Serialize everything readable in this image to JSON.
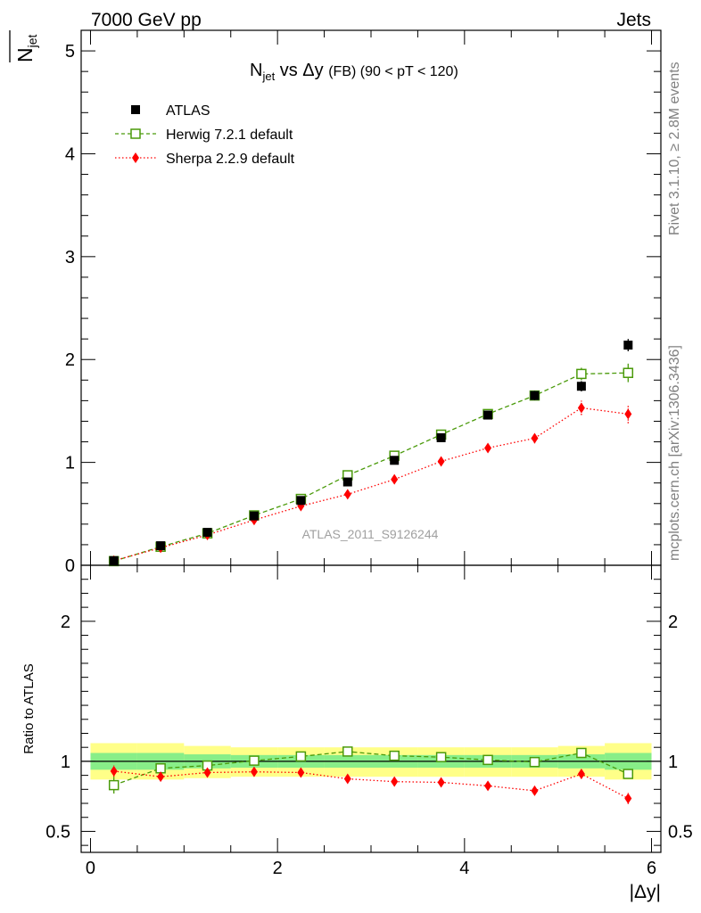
{
  "header": {
    "left": "7000 GeV pp",
    "right": "Jets"
  },
  "side_text": {
    "rivet": "Rivet 3.1.10, ≥ 2.8M events",
    "mcplots": "mcplots.cern.ch [arXiv:1306.3436]"
  },
  "chart_data": [
    {
      "type": "scatter",
      "title_main": "N",
      "title_sub": "jet",
      "title_vs": " vs Δy ",
      "title_fb": "(FB)",
      "title_range": " (90 < pT < 120)",
      "ylabel_main": "N",
      "ylabel_sub": "jet",
      "watermark": "ATLAS_2011_S9126244",
      "xlim": [
        -0.1,
        6.1
      ],
      "ylim": [
        0,
        5.2
      ],
      "yticks": [
        0,
        1,
        2,
        3,
        4,
        5
      ],
      "ytick_labels": [
        "0",
        "1",
        "2",
        "3",
        "4",
        "5"
      ],
      "x": [
        0.25,
        0.75,
        1.25,
        1.75,
        2.25,
        2.75,
        3.25,
        3.75,
        4.25,
        4.75,
        5.25,
        5.75
      ],
      "series": [
        {
          "name": "ATLAS",
          "color": "#000000",
          "marker": "square",
          "values": [
            0.045,
            0.19,
            0.32,
            0.48,
            0.63,
            0.81,
            1.02,
            1.24,
            1.46,
            1.65,
            1.74,
            2.14
          ],
          "errors": [
            0.005,
            0.01,
            0.01,
            0.015,
            0.02,
            0.025,
            0.03,
            0.035,
            0.04,
            0.045,
            0.05,
            0.06
          ]
        },
        {
          "name": "Herwig 7.2.1 default",
          "color": "#4a9a0a",
          "marker": "open-square",
          "line": "dashed",
          "values": [
            0.04,
            0.18,
            0.31,
            0.485,
            0.645,
            0.875,
            1.065,
            1.27,
            1.47,
            1.65,
            1.86,
            1.87
          ],
          "errors": [
            0.004,
            0.01,
            0.01,
            0.015,
            0.02,
            0.02,
            0.025,
            0.03,
            0.03,
            0.035,
            0.06,
            0.09
          ]
        },
        {
          "name": "Sherpa 2.2.9 default",
          "color": "#ff0000",
          "marker": "diamond",
          "line": "dotted",
          "values": [
            0.045,
            0.17,
            0.295,
            0.44,
            0.575,
            0.69,
            0.835,
            1.01,
            1.14,
            1.235,
            1.53,
            1.47
          ],
          "errors": [
            0.004,
            0.01,
            0.012,
            0.015,
            0.02,
            0.025,
            0.03,
            0.035,
            0.04,
            0.05,
            0.07,
            0.09
          ]
        }
      ],
      "legend": [
        "ATLAS",
        "Herwig 7.2.1 default",
        "Sherpa 2.2.9 default"
      ]
    },
    {
      "type": "scatter",
      "ylabel": "Ratio to ATLAS",
      "xlabel": "|Δy|",
      "xlim": [
        -0.1,
        6.1
      ],
      "ylim": [
        0.35,
        2.4
      ],
      "yticks": [
        0.5,
        1,
        2
      ],
      "ytick_labels": [
        "0.5",
        "1",
        "2"
      ],
      "xticks": [
        0,
        2,
        4,
        6
      ],
      "xtick_labels": [
        "0",
        "2",
        "4",
        "6"
      ],
      "x_edges": [
        0,
        0.5,
        1,
        1.5,
        2,
        2.5,
        3,
        3.5,
        4,
        4.5,
        5,
        5.5,
        6
      ],
      "band_yellow": {
        "color": "#ffff88",
        "lower": [
          0.87,
          0.87,
          0.88,
          0.89,
          0.89,
          0.89,
          0.89,
          0.89,
          0.89,
          0.89,
          0.89,
          0.87
        ],
        "upper": [
          1.13,
          1.13,
          1.11,
          1.1,
          1.1,
          1.1,
          1.1,
          1.1,
          1.1,
          1.1,
          1.11,
          1.13
        ]
      },
      "band_green": {
        "color": "#88ee88",
        "lower": [
          0.94,
          0.94,
          0.95,
          0.955,
          0.955,
          0.955,
          0.955,
          0.955,
          0.955,
          0.955,
          0.95,
          0.94
        ],
        "upper": [
          1.06,
          1.06,
          1.05,
          1.045,
          1.045,
          1.045,
          1.045,
          1.045,
          1.045,
          1.045,
          1.05,
          1.06
        ]
      },
      "series": [
        {
          "name": "Herwig 7.2.1 default",
          "color": "#4a9a0a",
          "marker": "open-square",
          "line": "dashed",
          "values": [
            0.83,
            0.95,
            0.97,
            1.005,
            1.035,
            1.07,
            1.04,
            1.03,
            1.01,
            0.995,
            1.06,
            0.91
          ],
          "errors": [
            0.06,
            0.02,
            0.015,
            0.01,
            0.01,
            0.01,
            0.01,
            0.01,
            0.01,
            0.01,
            0.015,
            0.03
          ]
        },
        {
          "name": "Sherpa 2.2.9 default",
          "color": "#ff0000",
          "marker": "diamond",
          "line": "dotted",
          "values": [
            0.93,
            0.89,
            0.92,
            0.925,
            0.92,
            0.875,
            0.855,
            0.85,
            0.825,
            0.79,
            0.91,
            0.735
          ],
          "errors": [
            0.04,
            0.025,
            0.015,
            0.015,
            0.015,
            0.015,
            0.015,
            0.015,
            0.02,
            0.025,
            0.035,
            0.04
          ]
        }
      ]
    }
  ]
}
